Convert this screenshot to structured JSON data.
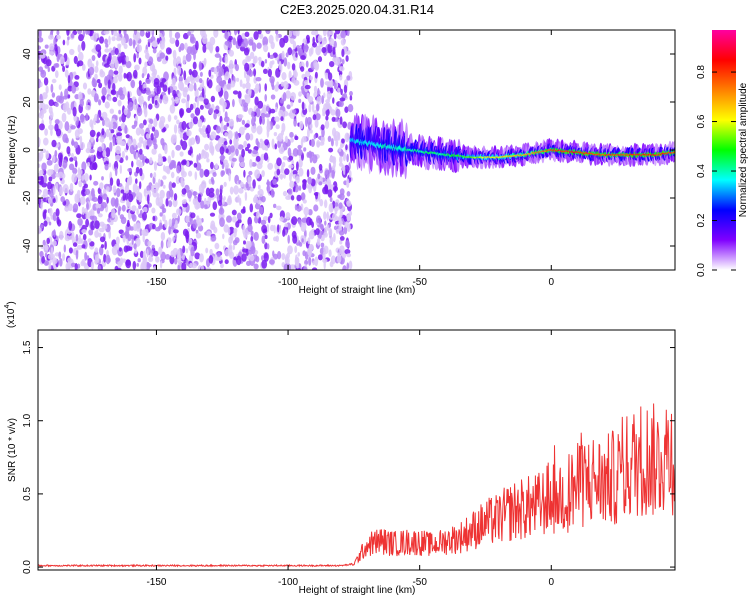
{
  "title": "C2E3.2025.020.04.31.R14",
  "chart_data": [
    {
      "type": "heatmap",
      "xlabel": "Height of straight line (km)",
      "ylabel": "Frequency (Hz)",
      "xlim": [
        -195,
        47
      ],
      "ylim": [
        -50,
        50
      ],
      "xticks": [
        -150,
        -100,
        -50,
        0
      ],
      "yticks": [
        -40,
        -20,
        0,
        20,
        40
      ],
      "colorbar": {
        "label": "Normalized spectral amplitude",
        "range": [
          0,
          0.97
        ],
        "ticks": [
          0.0,
          0.2,
          0.4,
          0.6,
          0.8
        ],
        "colormap": [
          "#ffffff",
          "#8000ff",
          "#0000ff",
          "#00ffff",
          "#00ff00",
          "#ffff00",
          "#ff8000",
          "#ff0000",
          "#ff00a0"
        ]
      },
      "noise_region_x": [
        -195,
        -76
      ],
      "ridge": [
        {
          "x": -76,
          "f": 4,
          "amp": 0.35
        },
        {
          "x": -60,
          "f": 1,
          "amp": 0.4
        },
        {
          "x": -40,
          "f": -2,
          "amp": 0.45
        },
        {
          "x": -30,
          "f": -3,
          "amp": 0.55
        },
        {
          "x": -20,
          "f": -3,
          "amp": 0.65
        },
        {
          "x": -10,
          "f": -2,
          "amp": 0.7
        },
        {
          "x": 0,
          "f": 0,
          "amp": 0.8
        },
        {
          "x": 10,
          "f": -1,
          "amp": 0.85
        },
        {
          "x": 20,
          "f": -2,
          "amp": 0.8
        },
        {
          "x": 30,
          "f": -2,
          "amp": 0.82
        },
        {
          "x": 40,
          "f": -2,
          "amp": 0.85
        },
        {
          "x": 47,
          "f": -1,
          "amp": 0.8
        }
      ]
    },
    {
      "type": "line",
      "xlabel": "Height of straight line (km)",
      "ylabel": "SNR (10 * v/v)",
      "yscale_label": "(x10",
      "yscale_exponent": "4",
      "xlim": [
        -195,
        47
      ],
      "ylim": [
        -0.02,
        1.62
      ],
      "xticks": [
        -150,
        -100,
        -50,
        0
      ],
      "yticks": [
        0.0,
        0.5,
        1.0,
        1.5
      ],
      "color": "#ee3333",
      "series": [
        {
          "x": [
            -195,
            -160,
            -120,
            -80,
            -75,
            -70,
            -65,
            -60,
            -55,
            -50,
            -45,
            -40,
            -35,
            -30,
            -25,
            -20,
            -15,
            -10,
            -5,
            0,
            5,
            10,
            15,
            20,
            25,
            30,
            35,
            40,
            45,
            47
          ],
          "y": [
            0.01,
            0.01,
            0.01,
            0.01,
            0.02,
            0.15,
            0.18,
            0.16,
            0.17,
            0.17,
            0.15,
            0.18,
            0.2,
            0.25,
            0.3,
            0.33,
            0.38,
            0.4,
            0.42,
            0.48,
            0.5,
            0.55,
            0.6,
            0.58,
            0.62,
            0.7,
            0.75,
            0.72,
            0.8,
            0.75
          ]
        }
      ]
    }
  ]
}
